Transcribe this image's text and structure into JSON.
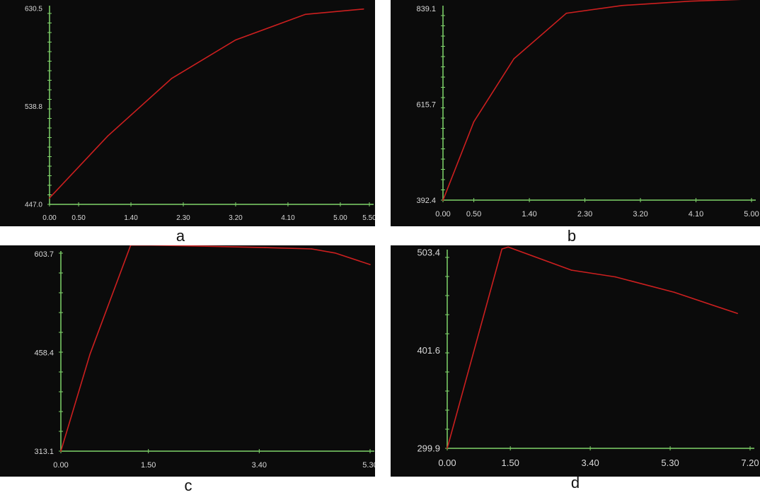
{
  "colors": {
    "background": "#0b0b0b",
    "axis": "#7fd46a",
    "line": "#cc1f1f",
    "label": "#d9d9d9",
    "page": "#ffffff"
  },
  "captions": {
    "a": "a",
    "b": "b",
    "c": "c",
    "d": "d"
  },
  "chart_data": [
    {
      "type": "line",
      "ytick_labels": [
        "447.0",
        "538.8",
        "630.5"
      ],
      "xtick_labels": [
        "0.00",
        "0.50",
        "1.40",
        "2.30",
        "3.20",
        "4.10",
        "5.00",
        "5.50"
      ],
      "xlim": [
        0,
        5.5
      ],
      "ylim": [
        447.0,
        630.5
      ],
      "series": [
        {
          "x": [
            0,
            1.0,
            2.1,
            3.2,
            4.4,
            5.4
          ],
          "y": [
            453,
            511,
            565,
            601,
            625,
            630
          ]
        }
      ],
      "grid": false,
      "legend": "none"
    },
    {
      "type": "line",
      "ytick_labels": [
        "392.4",
        "615.7",
        "839.1"
      ],
      "xtick_labels": [
        "0.00",
        "0.50",
        "1.40",
        "2.30",
        "3.20",
        "4.10",
        "5.00"
      ],
      "xlim": [
        0,
        5.0
      ],
      "ylim": [
        392.4,
        839.1
      ],
      "series": [
        {
          "x": [
            0,
            0.5,
            1.15,
            2.0,
            2.9,
            4.0,
            5.0
          ],
          "y": [
            392,
            575,
            722,
            828,
            846,
            856,
            861
          ]
        }
      ],
      "grid": false,
      "legend": "none"
    },
    {
      "type": "line",
      "ytick_labels": [
        "313.1",
        "458.4",
        "603.7"
      ],
      "xtick_labels": [
        "0.00",
        "1.50",
        "3.40",
        "5.30"
      ],
      "xlim": [
        0,
        5.3
      ],
      "ylim": [
        313.1,
        603.7
      ],
      "series": [
        {
          "x": [
            0,
            0.5,
            1.2,
            2.5,
            3.5,
            4.3,
            4.7,
            5.3
          ],
          "y": [
            313,
            456,
            617,
            615,
            613,
            611,
            605,
            588
          ]
        }
      ],
      "grid": false,
      "legend": "none"
    },
    {
      "type": "line",
      "ytick_labels": [
        "299.9",
        "401.6",
        "503.4"
      ],
      "xtick_labels": [
        "0.00",
        "1.50",
        "3.40",
        "5.30",
        "7.20"
      ],
      "xlim": [
        0,
        7.2
      ],
      "ylim": [
        299.9,
        503.4
      ],
      "series": [
        {
          "x": [
            0,
            1.3,
            1.45,
            2.95,
            4.0,
            5.4,
            6.9
          ],
          "y": [
            300,
            507,
            509,
            485,
            478,
            462,
            440
          ]
        }
      ],
      "grid": false,
      "legend": "none"
    }
  ]
}
